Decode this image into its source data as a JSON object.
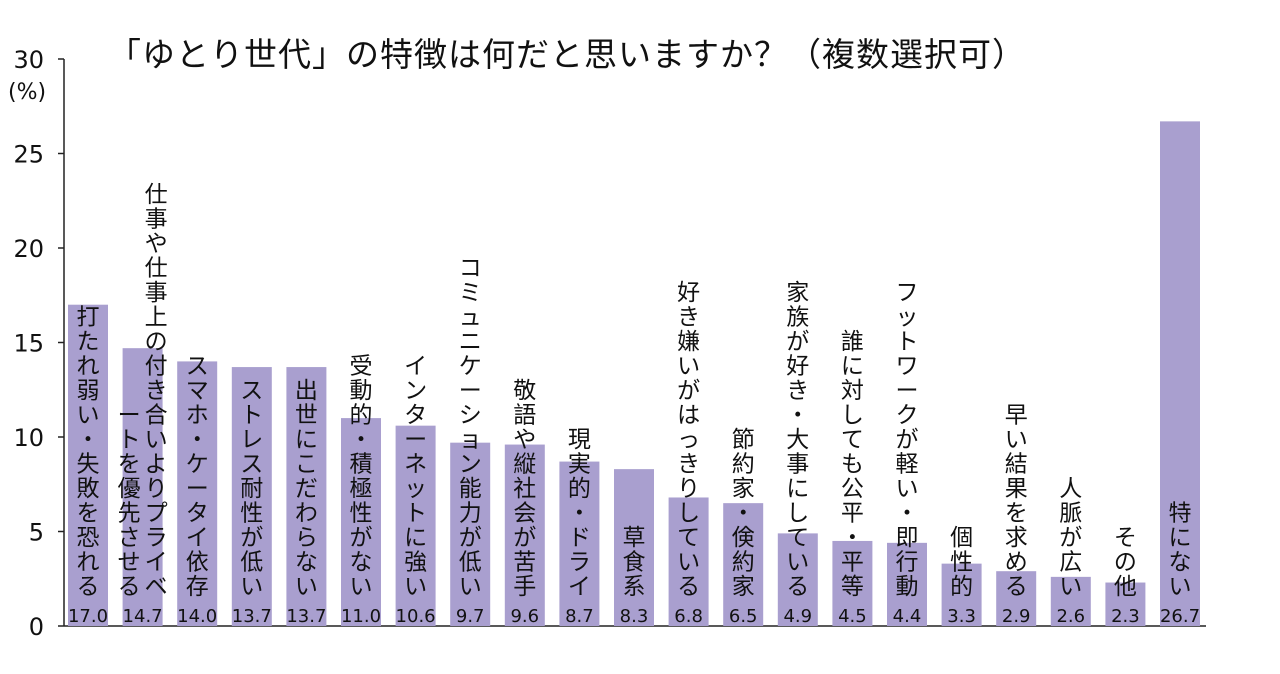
{
  "chart_data": {
    "type": "bar",
    "title": "「ゆとり世代」の特徴は何だと思いますか？（複数選択可）",
    "ylabel": "(%)",
    "ylim": [
      0,
      30
    ],
    "yticks": [
      0,
      5,
      10,
      15,
      20,
      25,
      30
    ],
    "grid": false,
    "bar_color": "#a99fcf",
    "categories": [
      "打たれ弱い・失敗を恐れる",
      "仕事や仕事上の付き合いよりプライベートを優先させる",
      "スマホ・ケータイ依存",
      "ストレス耐性が低い",
      "出世にこだわらない",
      "受動的・積極性がない",
      "インターネットに強い",
      "コミュニケーション能力が低い",
      "敬語や縦社会が苦手",
      "現実的・ドライ",
      "草食系",
      "好き嫌いがはっきりしている",
      "節約家・倹約家",
      "家族が好き・大事にしている",
      "誰に対しても公平・平等",
      "フットワークが軽い・即行動",
      "個性的",
      "早い結果を求める",
      "人脈が広い",
      "その他",
      "特にない"
    ],
    "values": [
      17.0,
      14.7,
      14.0,
      13.7,
      13.7,
      11.0,
      10.6,
      9.7,
      9.6,
      8.7,
      8.3,
      6.8,
      6.5,
      4.9,
      4.5,
      4.4,
      3.3,
      2.9,
      2.6,
      2.3,
      26.7
    ],
    "value_labels": [
      "17.0",
      "14.7",
      "14.0",
      "13.7",
      "13.7",
      "11.0",
      "10.6",
      "9.7",
      "9.6",
      "8.7",
      "8.3",
      "6.8",
      "6.5",
      "4.9",
      "4.5",
      "4.4",
      "3.3",
      "2.9",
      "2.6",
      "2.3",
      "26.7"
    ]
  }
}
